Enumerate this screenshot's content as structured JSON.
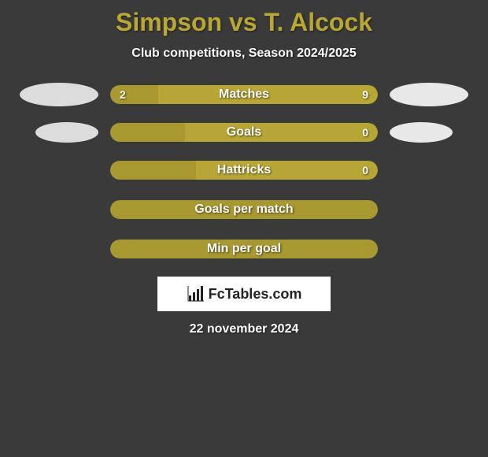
{
  "title": "Simpson vs T. Alcock",
  "subtitle": "Club competitions, Season 2024/2025",
  "date": "22 november 2024",
  "logo": {
    "text": "FcTables.com"
  },
  "colors": {
    "background": "#3a3a3a",
    "accent": "#b8a832",
    "bar_left": "#a89830",
    "bar_right": "#b5a636",
    "avatar_left": "#dcdcdc",
    "avatar_right": "#e8e8e8",
    "text_white": "#ffffff"
  },
  "rows": [
    {
      "label": "Matches",
      "left_value": "2",
      "right_value": "9",
      "left_pct": 18,
      "show_left_avatar": true,
      "show_right_avatar": true,
      "avatar_size": "large"
    },
    {
      "label": "Goals",
      "left_value": "",
      "right_value": "0",
      "left_pct": 28,
      "show_left_avatar": true,
      "show_right_avatar": true,
      "avatar_size": "small"
    },
    {
      "label": "Hattricks",
      "left_value": "",
      "right_value": "0",
      "left_pct": 32,
      "show_left_avatar": false,
      "show_right_avatar": false
    },
    {
      "label": "Goals per match",
      "left_value": "",
      "right_value": "",
      "left_pct": 100,
      "show_left_avatar": false,
      "show_right_avatar": false
    },
    {
      "label": "Min per goal",
      "left_value": "",
      "right_value": "",
      "left_pct": 100,
      "show_left_avatar": false,
      "show_right_avatar": false
    }
  ]
}
